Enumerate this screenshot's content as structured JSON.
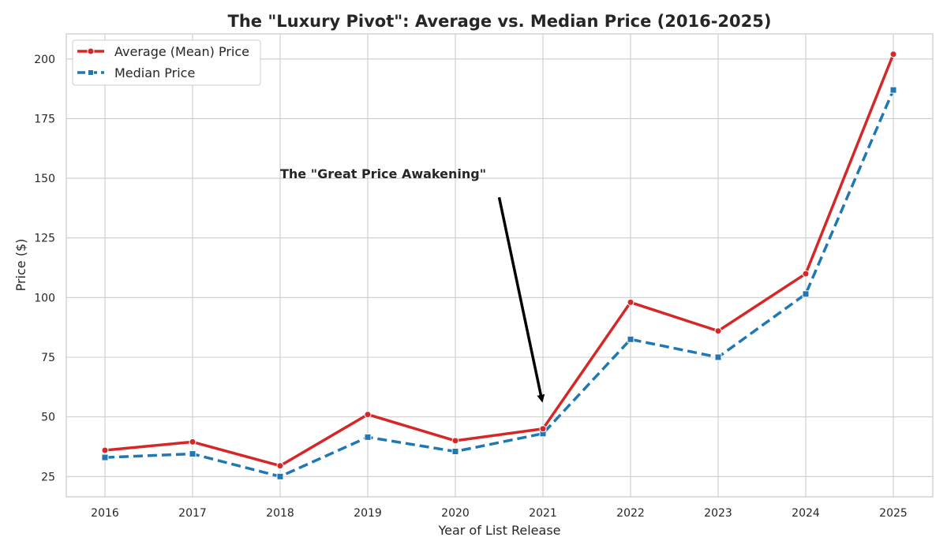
{
  "chart_data": {
    "type": "line",
    "title": "The \"Luxury Pivot\": Average vs. Median Price (2016-2025)",
    "xlabel": "Year of List Release",
    "ylabel": "Price ($)",
    "categories": [
      "2016",
      "2017",
      "2018",
      "2019",
      "2020",
      "2021",
      "2022",
      "2023",
      "2024",
      "2025"
    ],
    "ylim": [
      16.5,
      210.5
    ],
    "yticks": [
      25,
      50,
      75,
      100,
      125,
      150,
      175,
      200
    ],
    "grid": true,
    "legend_position": "top-left",
    "series": [
      {
        "name": "Average (Mean) Price",
        "color": "#d62728",
        "marker": "circle",
        "linestyle": "solid",
        "values": [
          36.0,
          39.5,
          29.5,
          51.0,
          40.0,
          45.0,
          98.0,
          86.0,
          110.0,
          202.0
        ]
      },
      {
        "name": "Median Price",
        "color": "#1f77b4",
        "marker": "square",
        "linestyle": "dashed",
        "values": [
          33.0,
          34.5,
          25.0,
          41.5,
          35.5,
          43.0,
          82.5,
          75.0,
          101.5,
          187.0
        ]
      }
    ],
    "annotations": [
      {
        "text": "The \"Great Price Awakening\"",
        "text_at": {
          "x": 2018,
          "y": 150
        },
        "arrow_from": {
          "x": 2020.5,
          "y": 142
        },
        "arrow_to": {
          "x": 2021,
          "y": 55
        }
      }
    ]
  }
}
